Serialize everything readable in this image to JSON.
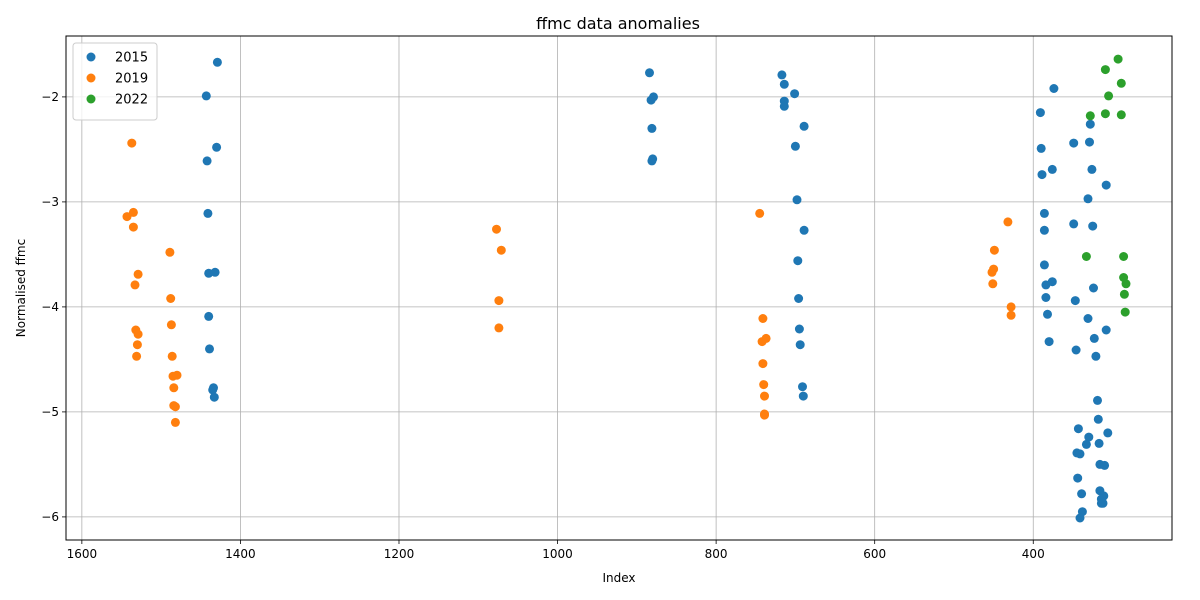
{
  "chart_data": {
    "type": "scatter",
    "title": "ffmc data anomalies",
    "xlabel": "Index",
    "ylabel": "Normalised ffmc",
    "xlim": [
      1620,
      225
    ],
    "ylim": [
      -6.22,
      -1.42
    ],
    "x_reversed": true,
    "x_ticks": [
      1600,
      1400,
      1200,
      1000,
      800,
      600,
      400
    ],
    "x_tick_labels": [
      "1600",
      "1400",
      "1200",
      "1000",
      "800",
      "600",
      "400"
    ],
    "y_ticks": [
      -2,
      -3,
      -4,
      -5,
      -6
    ],
    "y_tick_labels": [
      "−2",
      "−3",
      "−4",
      "−5",
      "−6"
    ],
    "grid": true,
    "legend_position": "top-left",
    "series": [
      {
        "name": "2015",
        "color": "#1f77b4",
        "points": [
          [
            1429,
            -1.67
          ],
          [
            1443,
            -1.99
          ],
          [
            1430,
            -2.48
          ],
          [
            1442,
            -2.61
          ],
          [
            1441,
            -3.11
          ],
          [
            1440,
            -3.68
          ],
          [
            1432,
            -3.67
          ],
          [
            1440,
            -4.09
          ],
          [
            1439,
            -4.4
          ],
          [
            1434,
            -4.77
          ],
          [
            1435,
            -4.79
          ],
          [
            1433,
            -4.86
          ],
          [
            884,
            -1.77
          ],
          [
            882,
            -2.03
          ],
          [
            879,
            -2.0
          ],
          [
            881,
            -2.3
          ],
          [
            880,
            -2.59
          ],
          [
            881,
            -2.61
          ],
          [
            717,
            -1.79
          ],
          [
            714,
            -1.88
          ],
          [
            714,
            -2.04
          ],
          [
            714,
            -2.09
          ],
          [
            701,
            -1.97
          ],
          [
            689,
            -2.28
          ],
          [
            700,
            -2.47
          ],
          [
            698,
            -2.98
          ],
          [
            689,
            -3.27
          ],
          [
            697,
            -3.56
          ],
          [
            696,
            -3.92
          ],
          [
            695,
            -4.21
          ],
          [
            694,
            -4.36
          ],
          [
            691,
            -4.76
          ],
          [
            690,
            -4.85
          ],
          [
            374,
            -1.92
          ],
          [
            391,
            -2.15
          ],
          [
            390,
            -2.49
          ],
          [
            389,
            -2.74
          ],
          [
            376,
            -2.69
          ],
          [
            386,
            -3.11
          ],
          [
            386,
            -3.27
          ],
          [
            386,
            -3.6
          ],
          [
            384,
            -3.79
          ],
          [
            376,
            -3.76
          ],
          [
            384,
            -3.91
          ],
          [
            382,
            -4.07
          ],
          [
            380,
            -4.33
          ],
          [
            349,
            -2.44
          ],
          [
            328,
            -2.26
          ],
          [
            329,
            -2.43
          ],
          [
            326,
            -2.69
          ],
          [
            308,
            -2.84
          ],
          [
            331,
            -2.97
          ],
          [
            349,
            -3.21
          ],
          [
            325,
            -3.23
          ],
          [
            347,
            -3.94
          ],
          [
            324,
            -3.82
          ],
          [
            331,
            -4.11
          ],
          [
            323,
            -4.3
          ],
          [
            308,
            -4.22
          ],
          [
            346,
            -4.41
          ],
          [
            321,
            -4.47
          ],
          [
            319,
            -4.89
          ],
          [
            318,
            -5.07
          ],
          [
            343,
            -5.16
          ],
          [
            330,
            -5.24
          ],
          [
            306,
            -5.2
          ],
          [
            333,
            -5.31
          ],
          [
            317,
            -5.3
          ],
          [
            345,
            -5.39
          ],
          [
            341,
            -5.4
          ],
          [
            316,
            -5.5
          ],
          [
            310,
            -5.51
          ],
          [
            344,
            -5.63
          ],
          [
            316,
            -5.75
          ],
          [
            339,
            -5.78
          ],
          [
            311,
            -5.8
          ],
          [
            314,
            -5.83
          ],
          [
            314,
            -5.87
          ],
          [
            312,
            -5.87
          ],
          [
            338,
            -5.95
          ],
          [
            341,
            -6.01
          ]
        ]
      },
      {
        "name": "2019",
        "color": "#ff7f0e",
        "points": [
          [
            1537,
            -2.44
          ],
          [
            1543,
            -3.14
          ],
          [
            1535,
            -3.1
          ],
          [
            1535,
            -3.24
          ],
          [
            1529,
            -3.69
          ],
          [
            1533,
            -3.79
          ],
          [
            1532,
            -4.22
          ],
          [
            1529,
            -4.26
          ],
          [
            1530,
            -4.36
          ],
          [
            1531,
            -4.47
          ],
          [
            1489,
            -3.48
          ],
          [
            1488,
            -3.92
          ],
          [
            1487,
            -4.17
          ],
          [
            1486,
            -4.47
          ],
          [
            1485,
            -4.66
          ],
          [
            1480,
            -4.65
          ],
          [
            1484,
            -4.77
          ],
          [
            1484,
            -4.94
          ],
          [
            1482,
            -4.95
          ],
          [
            1482,
            -5.1
          ],
          [
            1077,
            -3.26
          ],
          [
            1071,
            -3.46
          ],
          [
            1074,
            -3.94
          ],
          [
            1074,
            -4.2
          ],
          [
            745,
            -3.11
          ],
          [
            741,
            -4.11
          ],
          [
            742,
            -4.33
          ],
          [
            737,
            -4.3
          ],
          [
            741,
            -4.54
          ],
          [
            740,
            -4.74
          ],
          [
            739,
            -4.85
          ],
          [
            739,
            -5.02
          ],
          [
            739,
            -5.03
          ],
          [
            432,
            -3.19
          ],
          [
            449,
            -3.46
          ],
          [
            452,
            -3.67
          ],
          [
            450,
            -3.64
          ],
          [
            451,
            -3.78
          ],
          [
            428,
            -4.0
          ],
          [
            428,
            -4.08
          ]
        ]
      },
      {
        "name": "2022",
        "color": "#2ca02c",
        "points": [
          [
            293,
            -1.64
          ],
          [
            309,
            -1.74
          ],
          [
            305,
            -1.99
          ],
          [
            289,
            -1.87
          ],
          [
            328,
            -2.18
          ],
          [
            309,
            -2.16
          ],
          [
            289,
            -2.17
          ],
          [
            333,
            -3.52
          ],
          [
            286,
            -3.52
          ],
          [
            286,
            -3.72
          ],
          [
            283,
            -3.78
          ],
          [
            285,
            -3.88
          ],
          [
            284,
            -4.05
          ]
        ]
      }
    ]
  }
}
